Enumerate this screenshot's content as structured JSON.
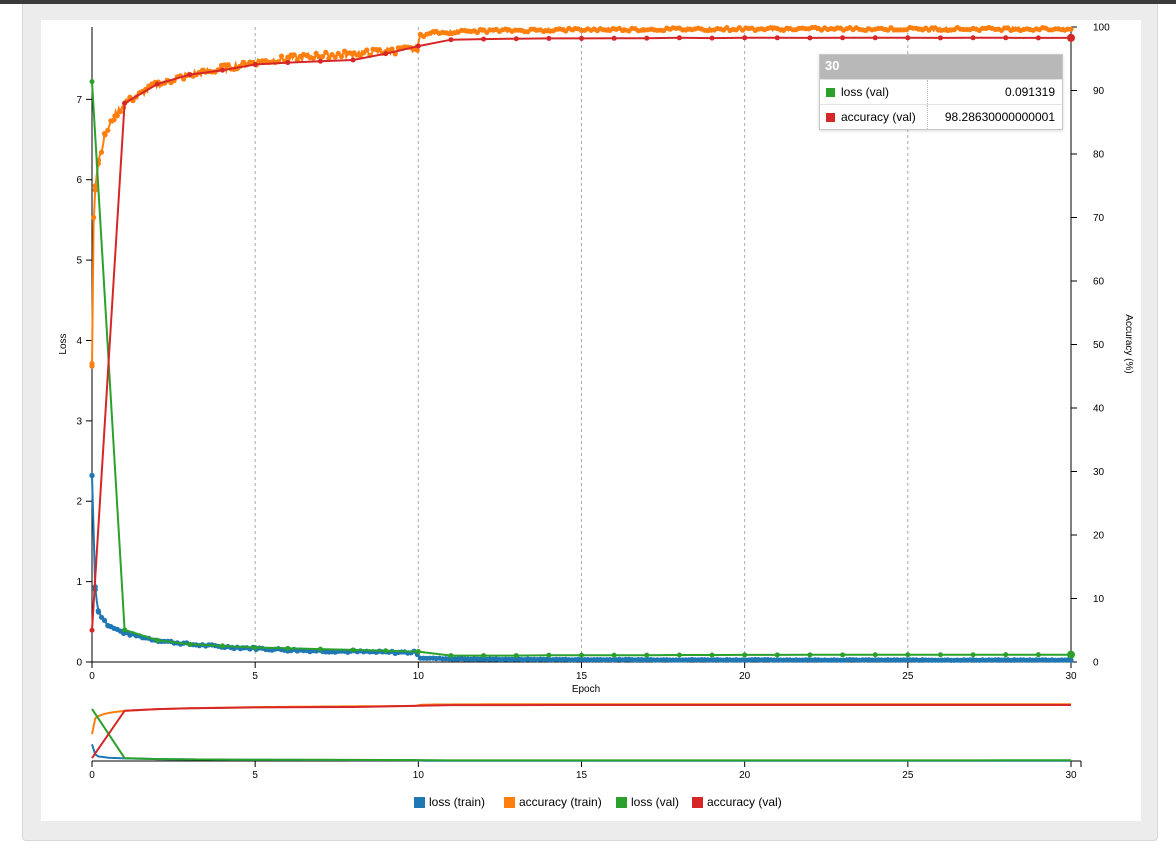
{
  "chart_data": [
    {
      "type": "line",
      "xlabel": "Epoch",
      "ylabel_left": "Loss",
      "ylabel_right": "Accuracy (%)",
      "xlim": [
        0,
        30
      ],
      "ylim_left": [
        0,
        7.9
      ],
      "ylim_right": [
        0,
        100
      ],
      "x_ticks": [
        0,
        5,
        10,
        15,
        20,
        25,
        30
      ],
      "y_left_ticks": [
        0,
        1,
        2,
        3,
        4,
        5,
        6,
        7
      ],
      "y_right_ticks": [
        0,
        10,
        20,
        30,
        40,
        50,
        60,
        70,
        80,
        90,
        100
      ],
      "grid": "vertical dashed at x ticks",
      "series": [
        {
          "name": "loss (train)",
          "axis": "left",
          "color": "#1f77b4",
          "x": [
            0,
            0.1,
            0.2,
            0.5,
            1,
            2,
            3,
            4,
            5,
            6,
            7,
            8,
            9,
            9.95,
            10.05,
            11,
            12,
            15,
            20,
            25,
            30
          ],
          "y": [
            2.32,
            0.9,
            0.62,
            0.45,
            0.36,
            0.27,
            0.22,
            0.19,
            0.17,
            0.15,
            0.14,
            0.13,
            0.12,
            0.12,
            0.05,
            0.04,
            0.035,
            0.03,
            0.027,
            0.025,
            0.025
          ]
        },
        {
          "name": "accuracy (train)",
          "axis": "right",
          "color": "#ff7f0e",
          "x": [
            0,
            0.05,
            0.1,
            0.2,
            0.4,
            0.7,
            1,
            1.5,
            2,
            3,
            4,
            5,
            6,
            7,
            8,
            9,
            9.95,
            10.05,
            10.5,
            12,
            15,
            20,
            25,
            30
          ],
          "y": [
            47,
            70,
            75,
            79,
            83,
            86,
            88,
            89.5,
            91,
            92.5,
            93.5,
            94.5,
            95,
            95.5,
            95.8,
            96.2,
            96.5,
            98.6,
            99.1,
            99.4,
            99.6,
            99.7,
            99.7,
            99.7
          ]
        },
        {
          "name": "loss (val)",
          "axis": "left",
          "color": "#2ca02c",
          "x": [
            0,
            1,
            2,
            3,
            4,
            5,
            6,
            7,
            8,
            9,
            10,
            11,
            12,
            13,
            14,
            15,
            16,
            17,
            18,
            19,
            20,
            21,
            22,
            23,
            24,
            25,
            26,
            27,
            28,
            29,
            30
          ],
          "y": [
            7.22,
            0.4,
            0.27,
            0.22,
            0.2,
            0.18,
            0.17,
            0.16,
            0.15,
            0.14,
            0.13,
            0.08,
            0.08,
            0.08,
            0.085,
            0.085,
            0.085,
            0.085,
            0.087,
            0.087,
            0.088,
            0.088,
            0.089,
            0.089,
            0.09,
            0.09,
            0.09,
            0.09,
            0.091,
            0.091,
            0.091319
          ]
        },
        {
          "name": "accuracy (val)",
          "axis": "right",
          "color": "#d62728",
          "x": [
            0,
            1,
            2,
            3,
            4,
            5,
            6,
            7,
            8,
            9,
            10,
            11,
            12,
            13,
            14,
            15,
            16,
            17,
            18,
            19,
            20,
            21,
            22,
            23,
            24,
            25,
            26,
            27,
            28,
            29,
            30
          ],
          "y": [
            5,
            88,
            91,
            92.5,
            93.2,
            94.1,
            94.4,
            94.6,
            94.8,
            95.8,
            97,
            98,
            98.1,
            98.15,
            98.2,
            98.2,
            98.22,
            98.24,
            98.3,
            98.25,
            98.3,
            98.3,
            98.28,
            98.3,
            98.3,
            98.3,
            98.28,
            98.3,
            98.3,
            98.28,
            98.2863
          ]
        }
      ]
    },
    {
      "type": "line",
      "role": "overview / brush",
      "xlim": [
        0,
        30
      ],
      "x_ticks": [
        0,
        5,
        10,
        15,
        20,
        25,
        30
      ]
    }
  ],
  "tooltip": {
    "title": "30",
    "rows": [
      {
        "name": "loss (val)",
        "value": "0.091319",
        "color": "#2ca02c"
      },
      {
        "name": "accuracy (val)",
        "value": "98.28630000000001",
        "color": "#d62728"
      }
    ]
  },
  "legend": [
    {
      "label": "loss (train)",
      "color": "#1f77b4"
    },
    {
      "label": "accuracy (train)",
      "color": "#ff7f0e"
    },
    {
      "label": "loss (val)",
      "color": "#2ca02c"
    },
    {
      "label": "accuracy (val)",
      "color": "#d62728"
    }
  ]
}
